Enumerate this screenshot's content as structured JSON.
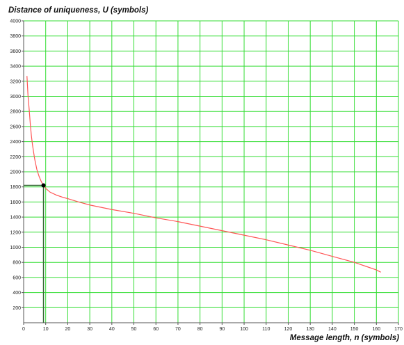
{
  "chart_data": {
    "type": "line",
    "ylabel": "Distance of uniqueness, U (symbols)",
    "xlabel": "Message length, n (symbols)",
    "xlim": [
      0,
      170
    ],
    "ylim": [
      0,
      4000
    ],
    "x_ticks": [
      0,
      10,
      20,
      30,
      40,
      50,
      60,
      70,
      80,
      90,
      100,
      110,
      120,
      130,
      140,
      150,
      160,
      170
    ],
    "y_ticks": [
      200,
      400,
      600,
      800,
      1000,
      1200,
      1400,
      1600,
      1800,
      2000,
      2200,
      2400,
      2600,
      2800,
      3000,
      3200,
      3400,
      3600,
      3800,
      4000
    ],
    "grid": true,
    "grid_color": "#33dd33",
    "line_color": "#ff5555",
    "series": [
      {
        "x": [
          1.5,
          2,
          2.5,
          3,
          3.5,
          4,
          5,
          6,
          7,
          8,
          9,
          10,
          12,
          15,
          18,
          20,
          25,
          30,
          35,
          40,
          50,
          60,
          70,
          80,
          90,
          100,
          110,
          120,
          130,
          140,
          150,
          155,
          160,
          162
        ],
        "values": [
          3270,
          3000,
          2830,
          2640,
          2480,
          2360,
          2170,
          2030,
          1940,
          1870,
          1820,
          1780,
          1730,
          1690,
          1660,
          1645,
          1600,
          1560,
          1530,
          1500,
          1450,
          1390,
          1340,
          1280,
          1220,
          1160,
          1100,
          1030,
          960,
          880,
          800,
          750,
          700,
          670
        ]
      }
    ],
    "highlight_point": {
      "x": 9,
      "y": 1820
    }
  }
}
